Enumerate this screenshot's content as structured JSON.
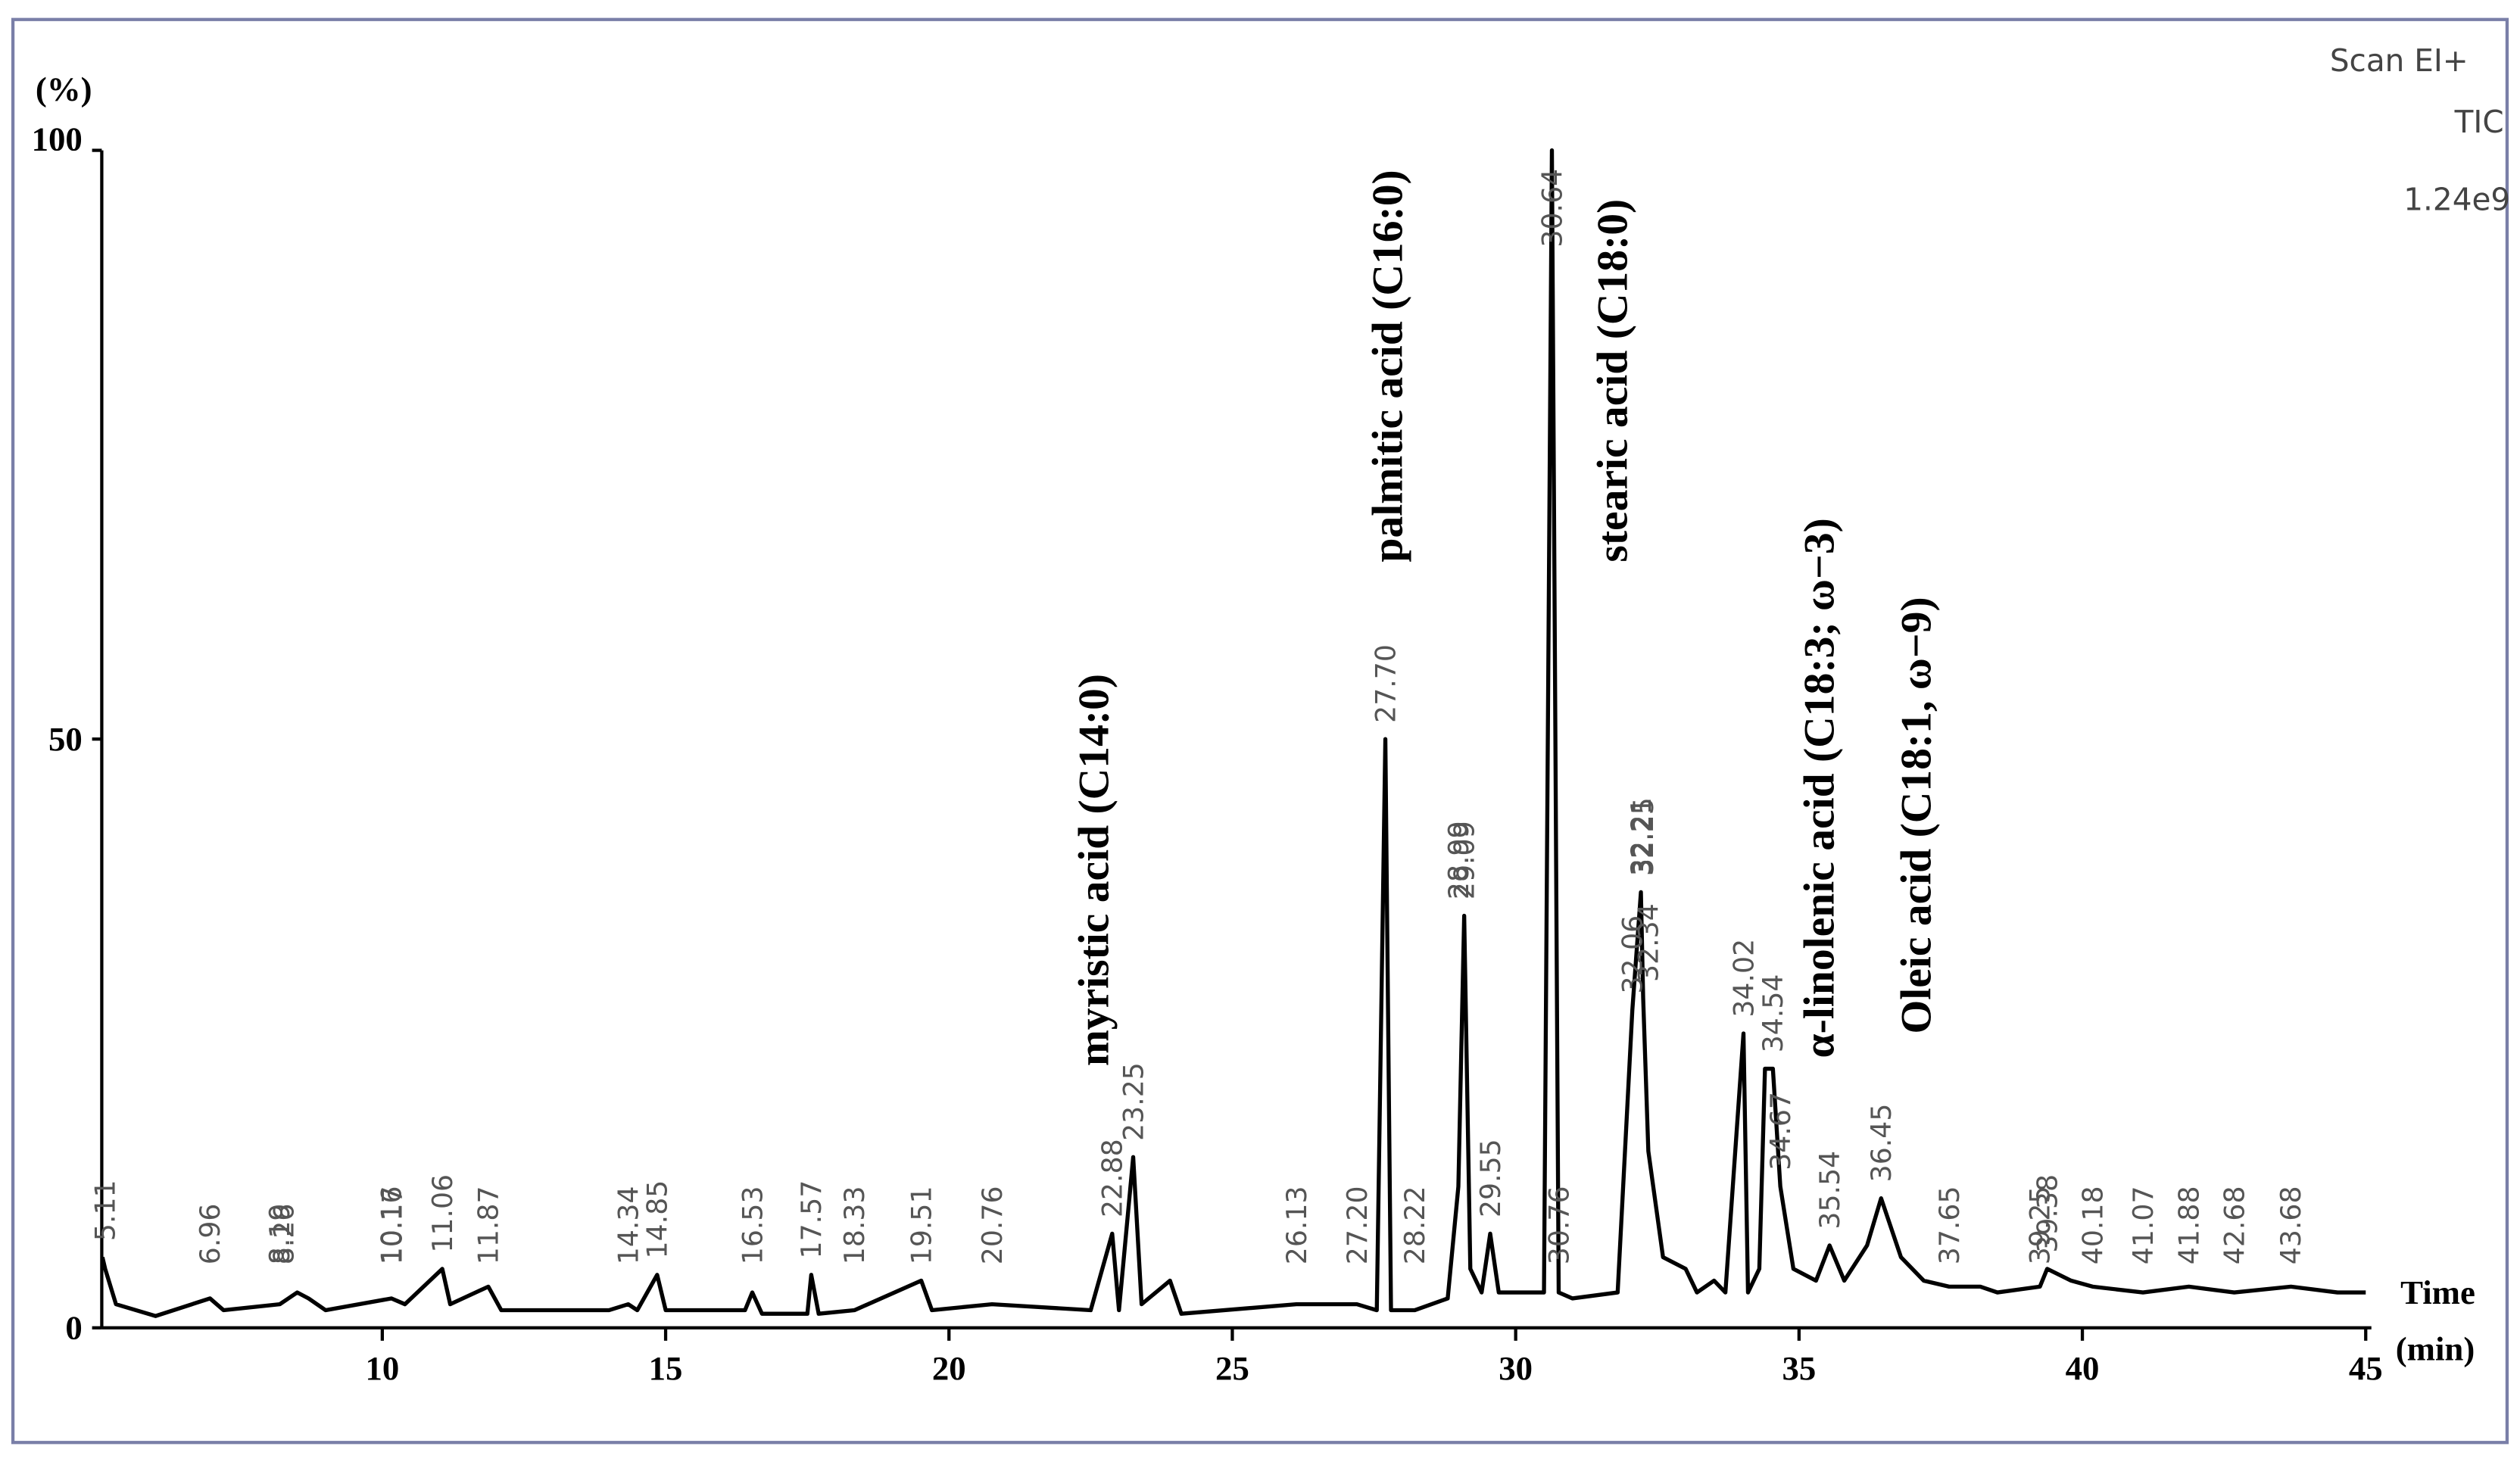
{
  "chart_data": {
    "type": "line",
    "y_label": "(%)",
    "x_label": [
      "Time",
      "(min)"
    ],
    "corner_text": [
      "Scan EI+",
      "TIC",
      "1.24e9"
    ],
    "color": "#000000",
    "xlim": [
      5.05,
      45.1
    ],
    "ylim": [
      0,
      100
    ],
    "xticks": [
      10,
      15,
      20,
      25,
      30,
      35,
      40,
      45
    ],
    "yticks": [
      0,
      50,
      100
    ],
    "x": [
      5.06,
      5.11,
      5.3,
      6.0,
      6.96,
      7.2,
      8.19,
      8.5,
      8.7,
      9.0,
      10.16,
      10.4,
      11.06,
      11.2,
      11.87,
      12.1,
      14.0,
      14.34,
      14.5,
      14.85,
      15.0,
      16.4,
      16.53,
      16.7,
      17.5,
      17.57,
      17.7,
      18.33,
      19.51,
      19.7,
      20.76,
      22.5,
      22.88,
      23.0,
      23.25,
      23.4,
      23.9,
      24.1,
      26.13,
      27.2,
      27.55,
      27.7,
      27.8,
      28.22,
      28.8,
      28.99,
      29.09,
      29.2,
      29.4,
      29.55,
      29.7,
      30.3,
      30.5,
      30.64,
      30.76,
      31.0,
      31.8,
      32.06,
      32.21,
      32.25,
      32.34,
      32.6,
      33.0,
      33.2,
      33.5,
      33.7,
      34.02,
      34.1,
      34.3,
      34.4,
      34.54,
      34.67,
      34.9,
      35.3,
      35.54,
      35.8,
      36.2,
      36.45,
      36.8,
      37.2,
      37.65,
      38.2,
      38.5,
      39.25,
      39.38,
      39.8,
      40.18,
      41.07,
      41.88,
      42.68,
      43.68,
      44.5,
      45.0
    ],
    "values": [
      6,
      5,
      2,
      1,
      2.5,
      1.5,
      2,
      3,
      2.5,
      1.5,
      2.5,
      2,
      5,
      2,
      3.5,
      1.5,
      1.5,
      2,
      1.5,
      4.5,
      1.5,
      1.5,
      3,
      1.2,
      1.2,
      4.5,
      1.2,
      1.5,
      4,
      1.5,
      2,
      1.5,
      8,
      1.5,
      14.5,
      2,
      4,
      1.2,
      2,
      2,
      1.5,
      50,
      1.5,
      1.5,
      2.5,
      12,
      35,
      5,
      3,
      8,
      3,
      3,
      3,
      100,
      3,
      2.5,
      3,
      27,
      37,
      28,
      15,
      6,
      5,
      3,
      4,
      3,
      25,
      3,
      5,
      22,
      22,
      12,
      5,
      4,
      7,
      4,
      7,
      11,
      6,
      4,
      3.5,
      3.5,
      3,
      3.5,
      5,
      4,
      3.5,
      3,
      3.5,
      3,
      3.5,
      3,
      3
    ],
    "peak_labels": [
      5.11,
      6.96,
      8.19,
      8.26,
      10.16,
      10.17,
      11.06,
      11.87,
      14.34,
      14.85,
      16.53,
      17.57,
      18.33,
      19.51,
      20.76,
      22.88,
      23.25,
      26.13,
      {
        "value": 27.2,
        "label": "27.20"
      },
      {
        "value": 27.7,
        "label": "27.70"
      },
      28.22,
      28.99,
      29.09,
      29.55,
      30.64,
      30.76,
      32.06,
      32.21,
      32.25,
      32.34,
      34.02,
      34.54,
      34.67,
      35.54,
      36.45,
      37.65,
      39.25,
      39.38,
      40.18,
      41.07,
      41.88,
      42.68,
      43.68
    ],
    "annotations": [
      "myristic acid (C14:0)",
      "palmitic acid (C16:0)",
      "stearic acid (C18:0)",
      "α-linolenic acid (C18:3; ω−3)",
      "Oleic acid (C18:1, ω−9)"
    ]
  }
}
